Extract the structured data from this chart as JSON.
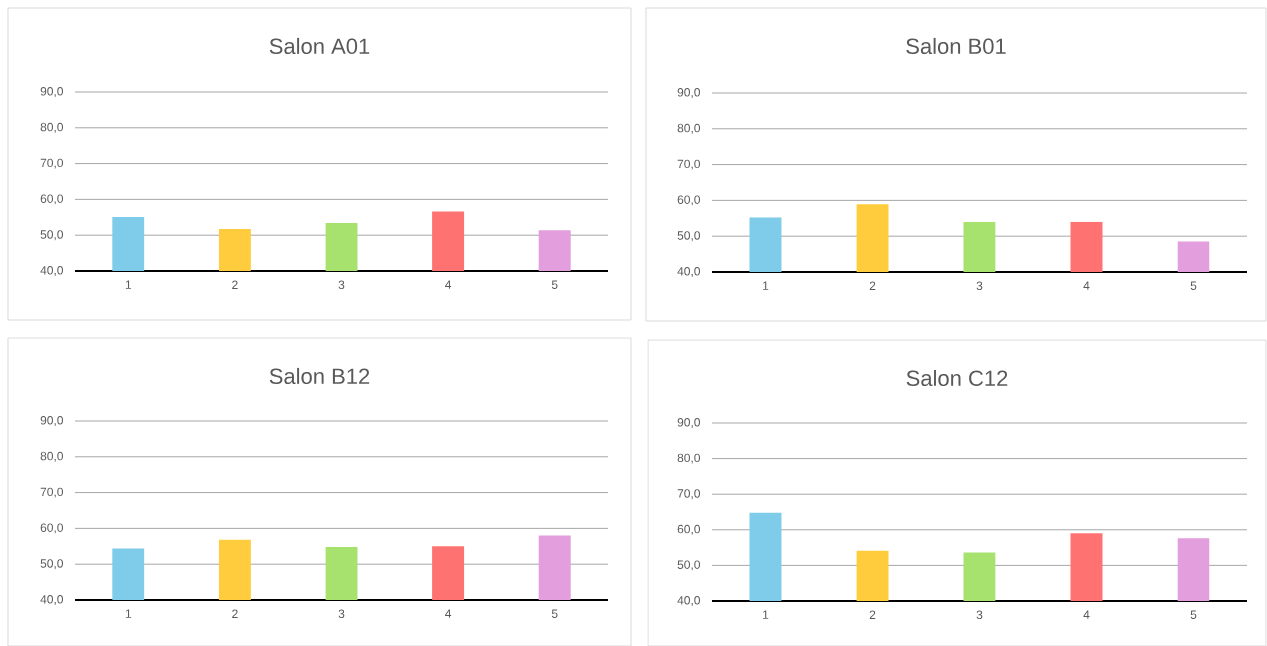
{
  "chart_data": [
    {
      "type": "bar",
      "title": "Salon A01",
      "categories": [
        "1",
        "2",
        "3",
        "4",
        "5"
      ],
      "values": [
        55.1,
        51.7,
        53.4,
        56.6,
        51.4
      ],
      "colors": [
        "#7ecbea",
        "#ffcc3d",
        "#a8e26e",
        "#ff7272",
        "#e39ede"
      ],
      "ylim": [
        40,
        90
      ],
      "yticks": [
        {
          "value": 40,
          "label": "40,0"
        },
        {
          "value": 50,
          "label": "50,0"
        },
        {
          "value": 60,
          "label": "60,0"
        },
        {
          "value": 70,
          "label": "70,0"
        },
        {
          "value": 80,
          "label": "80,0"
        },
        {
          "value": 90,
          "label": "90,0"
        }
      ],
      "grid": "y"
    },
    {
      "type": "bar",
      "title": "Salon B01",
      "categories": [
        "1",
        "2",
        "3",
        "4",
        "5"
      ],
      "values": [
        55.2,
        58.9,
        54.0,
        54.0,
        48.5
      ],
      "colors": [
        "#7ecbea",
        "#ffcc3d",
        "#a8e26e",
        "#ff7272",
        "#e39ede"
      ],
      "ylim": [
        40,
        90
      ],
      "yticks": [
        {
          "value": 40,
          "label": "40,0"
        },
        {
          "value": 50,
          "label": "50,0"
        },
        {
          "value": 60,
          "label": "60,0"
        },
        {
          "value": 70,
          "label": "70,0"
        },
        {
          "value": 80,
          "label": "80,0"
        },
        {
          "value": 90,
          "label": "90,0"
        }
      ],
      "grid": "y"
    },
    {
      "type": "bar",
      "title": "Salon B12",
      "categories": [
        "1",
        "2",
        "3",
        "4",
        "5"
      ],
      "values": [
        54.4,
        56.8,
        54.8,
        55.0,
        58.0
      ],
      "colors": [
        "#7ecbea",
        "#ffcc3d",
        "#a8e26e",
        "#ff7272",
        "#e39ede"
      ],
      "ylim": [
        40,
        90
      ],
      "yticks": [
        {
          "value": 40,
          "label": "40,0"
        },
        {
          "value": 50,
          "label": "50,0"
        },
        {
          "value": 60,
          "label": "60,0"
        },
        {
          "value": 70,
          "label": "70,0"
        },
        {
          "value": 80,
          "label": "80,0"
        },
        {
          "value": 90,
          "label": "90,0"
        }
      ],
      "grid": "y"
    },
    {
      "type": "bar",
      "title": "Salon C12",
      "categories": [
        "1",
        "2",
        "3",
        "4",
        "5"
      ],
      "values": [
        64.8,
        54.1,
        53.6,
        59.0,
        57.6
      ],
      "colors": [
        "#7ecbea",
        "#ffcc3d",
        "#a8e26e",
        "#ff7272",
        "#e39ede"
      ],
      "ylim": [
        40,
        90
      ],
      "yticks": [
        {
          "value": 40,
          "label": "40,0"
        },
        {
          "value": 50,
          "label": "50,0"
        },
        {
          "value": 60,
          "label": "60,0"
        },
        {
          "value": 70,
          "label": "70,0"
        },
        {
          "value": 80,
          "label": "80,0"
        },
        {
          "value": 90,
          "label": "90,0"
        }
      ],
      "grid": "y"
    }
  ]
}
